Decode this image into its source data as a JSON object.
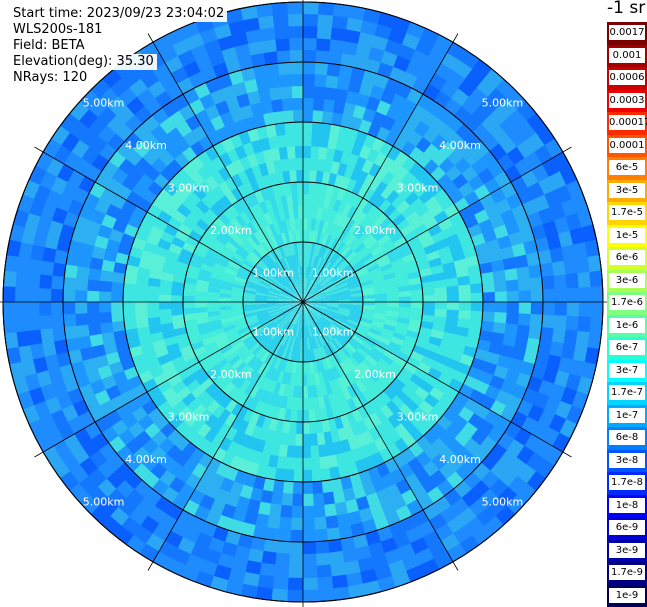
{
  "info": {
    "start_time": "Start time: 2023/09/23 23:04:02",
    "station": "WLS200s-181",
    "field": "Field: BETA",
    "elevation": "Elevation(deg): 35.30",
    "nrays": "NRays: 120"
  },
  "unit": "-1 sr",
  "range_rings": [
    "1.00km",
    "2.00km",
    "3.00km",
    "4.00km",
    "5.00km"
  ],
  "scale": [
    {
      "label": "0.0017",
      "color": "#7a0000"
    },
    {
      "label": "0.001",
      "color": "#a00000"
    },
    {
      "label": "0.0006",
      "color": "#c80000"
    },
    {
      "label": "0.0003",
      "color": "#ee0000"
    },
    {
      "label": "0.00017",
      "color": "#ff2a00"
    },
    {
      "label": "0.0001",
      "color": "#ff5500"
    },
    {
      "label": "6e-5",
      "color": "#ff8000"
    },
    {
      "label": "3e-5",
      "color": "#ffaa00"
    },
    {
      "label": "1.7e-5",
      "color": "#ffd400"
    },
    {
      "label": "1e-5",
      "color": "#ffff00"
    },
    {
      "label": "6e-6",
      "color": "#d4ff2a"
    },
    {
      "label": "3e-6",
      "color": "#aaff55"
    },
    {
      "label": "1.7e-6",
      "color": "#80ff80"
    },
    {
      "label": "1e-6",
      "color": "#55ffaa"
    },
    {
      "label": "6e-7",
      "color": "#2affd4"
    },
    {
      "label": "3e-7",
      "color": "#00ffff"
    },
    {
      "label": "1.7e-7",
      "color": "#00d4ff"
    },
    {
      "label": "1e-7",
      "color": "#00aaff"
    },
    {
      "label": "6e-8",
      "color": "#0080ff"
    },
    {
      "label": "3e-8",
      "color": "#0055ff"
    },
    {
      "label": "1.7e-8",
      "color": "#002aff"
    },
    {
      "label": "1e-8",
      "color": "#0000ff"
    },
    {
      "label": "6e-9",
      "color": "#0000d4"
    },
    {
      "label": "3e-9",
      "color": "#0000aa"
    },
    {
      "label": "1.7e-9",
      "color": "#000080"
    },
    {
      "label": "1e-9",
      "color": "#000055"
    }
  ]
}
